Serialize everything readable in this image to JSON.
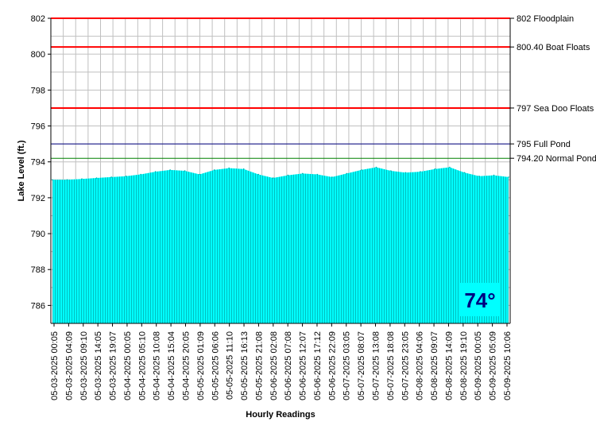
{
  "chart_data": {
    "type": "area",
    "title": "",
    "xlabel": "Hourly Readings",
    "ylabel": "Lake Level (ft.)",
    "ylim": [
      785,
      802
    ],
    "yticks": [
      786,
      788,
      790,
      792,
      794,
      796,
      798,
      800,
      802
    ],
    "grid": true,
    "x_labels": [
      "05-03-2025 00:05",
      "05-03-2025 04:09",
      "05-03-2025 09:10",
      "05-03-2025 14:05",
      "05-03-2025 19:07",
      "05-04-2025 00:05",
      "05-04-2025 05:10",
      "05-04-2025 10:08",
      "05-04-2025 15:04",
      "05-04-2025 20:05",
      "05-05-2025 01:09",
      "05-05-2025 06:06",
      "05-05-2025 11:10",
      "05-05-2025 16:13",
      "05-05-2025 21:08",
      "05-06-2025 02:08",
      "05-06-2025 07:08",
      "05-06-2025 12:07",
      "05-06-2025 17:12",
      "05-06-2025 22:09",
      "05-07-2025 03:05",
      "05-07-2025 08:07",
      "05-07-2025 13:08",
      "05-07-2025 18:08",
      "05-07-2025 23:05",
      "05-08-2025 04:06",
      "05-08-2025 09:07",
      "05-08-2025 14:09",
      "05-08-2025 19:10",
      "05-09-2025 00:05",
      "05-09-2025 05:09",
      "05-09-2025 10:06"
    ],
    "series": [
      {
        "values": [
          793.0,
          793.0,
          793.05,
          793.1,
          793.15,
          793.2,
          793.3,
          793.45,
          793.55,
          793.5,
          793.3,
          793.55,
          793.65,
          793.6,
          793.3,
          793.1,
          793.25,
          793.35,
          793.3,
          793.15,
          793.35,
          793.55,
          793.7,
          793.5,
          793.4,
          793.45,
          793.6,
          793.7,
          793.4,
          793.2,
          793.25,
          793.15
        ],
        "color": "#00ffff"
      }
    ],
    "reference_lines": [
      {
        "value": 802,
        "label": "802 Floodplain",
        "color": "#ff0000"
      },
      {
        "value": 800.4,
        "label": "800.40 Boat Floats",
        "color": "#ff0000"
      },
      {
        "value": 797,
        "label": "797 Sea Doo Floats",
        "color": "#ff0000"
      },
      {
        "value": 795,
        "label": "795 Full Pond",
        "color": "#000080"
      },
      {
        "value": 794.2,
        "label": "794.20 Normal Pond",
        "color": "#008000"
      }
    ],
    "annotations": [
      {
        "text": "74°",
        "color": "#000080",
        "background": "#00ffff",
        "position": "bottom-right"
      }
    ]
  }
}
